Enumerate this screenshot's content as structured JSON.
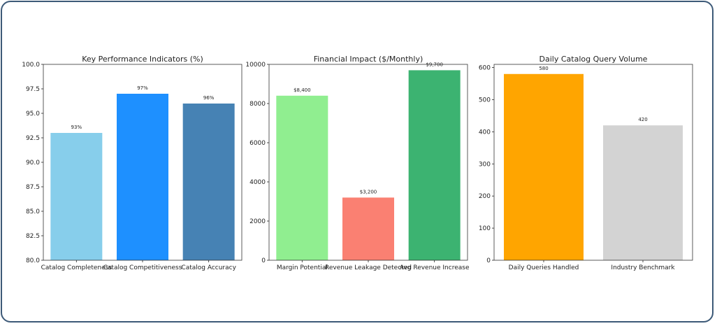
{
  "chart_data": [
    {
      "type": "bar",
      "title": "Key Performance Indicators (%)",
      "categories": [
        "Catalog Completeness",
        "Catalog Competitiveness",
        "Catalog Accuracy"
      ],
      "values": [
        93,
        97,
        96
      ],
      "data_labels": [
        "93%",
        "97%",
        "96%"
      ],
      "colors": [
        "#87CEEB",
        "#1E90FF",
        "#4682B4"
      ],
      "ylim": [
        80,
        100
      ],
      "yticks": [
        "80.0",
        "82.5",
        "85.0",
        "87.5",
        "90.0",
        "92.5",
        "95.0",
        "97.5",
        "100.0"
      ],
      "ytick_values": [
        80,
        82.5,
        85,
        87.5,
        90,
        92.5,
        95,
        97.5,
        100
      ],
      "xlabel": "",
      "ylabel": ""
    },
    {
      "type": "bar",
      "title": "Financial Impact ($/Monthly)",
      "categories": [
        "Margin Potential",
        "Revenue Leakage Detected",
        "Avg Revenue Increase"
      ],
      "values": [
        8400,
        3200,
        9700
      ],
      "data_labels": [
        "$8,400",
        "$3,200",
        "$9,700"
      ],
      "colors": [
        "#90EE90",
        "#FA8072",
        "#3CB371"
      ],
      "ylim": [
        0,
        10000
      ],
      "yticks": [
        "0",
        "2000",
        "4000",
        "6000",
        "8000",
        "10000"
      ],
      "ytick_values": [
        0,
        2000,
        4000,
        6000,
        8000,
        10000
      ],
      "xlabel": "",
      "ylabel": ""
    },
    {
      "type": "bar",
      "title": "Daily Catalog Query Volume",
      "categories": [
        "Daily Queries Handled",
        "Industry Benchmark"
      ],
      "values": [
        580,
        420
      ],
      "data_labels": [
        "580",
        "420"
      ],
      "colors": [
        "#FFA500",
        "#D3D3D3"
      ],
      "ylim": [
        0,
        610
      ],
      "yticks": [
        "0",
        "100",
        "200",
        "300",
        "400",
        "500",
        "600"
      ],
      "ytick_values": [
        0,
        100,
        200,
        300,
        400,
        500,
        600
      ],
      "xlabel": "",
      "ylabel": ""
    }
  ]
}
